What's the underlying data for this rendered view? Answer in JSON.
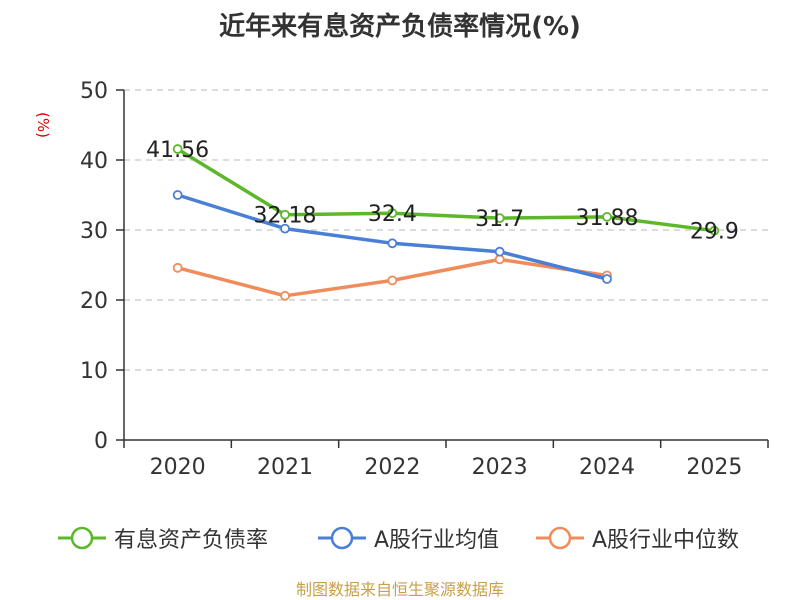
{
  "chart_data": {
    "type": "line",
    "title": "近年来有息资产负债率情况(%)",
    "ylabel": "(%)",
    "xlabel": "",
    "ylim": [
      0,
      50
    ],
    "yticks": [
      0,
      10,
      20,
      30,
      40,
      50
    ],
    "categories": [
      "2020",
      "2021",
      "2022",
      "2023",
      "2024",
      "2025"
    ],
    "grid": true,
    "legend_position": "bottom",
    "series": [
      {
        "name": "有息资产负债率",
        "color": "#5cb82a",
        "values": [
          41.56,
          32.18,
          32.4,
          31.7,
          31.88,
          29.9
        ],
        "labels": [
          "41.56",
          "32.18",
          "32.4",
          "31.7",
          "31.88",
          "29.9"
        ]
      },
      {
        "name": "A股行业均值",
        "color": "#4a7fd6",
        "values": [
          35.0,
          30.2,
          28.1,
          26.9,
          23.0,
          null
        ]
      },
      {
        "name": "A股行业中位数",
        "color": "#f08c5a",
        "values": [
          24.6,
          20.6,
          22.8,
          25.8,
          23.5,
          null
        ]
      }
    ]
  },
  "source": "制图数据来自恒生聚源数据库"
}
